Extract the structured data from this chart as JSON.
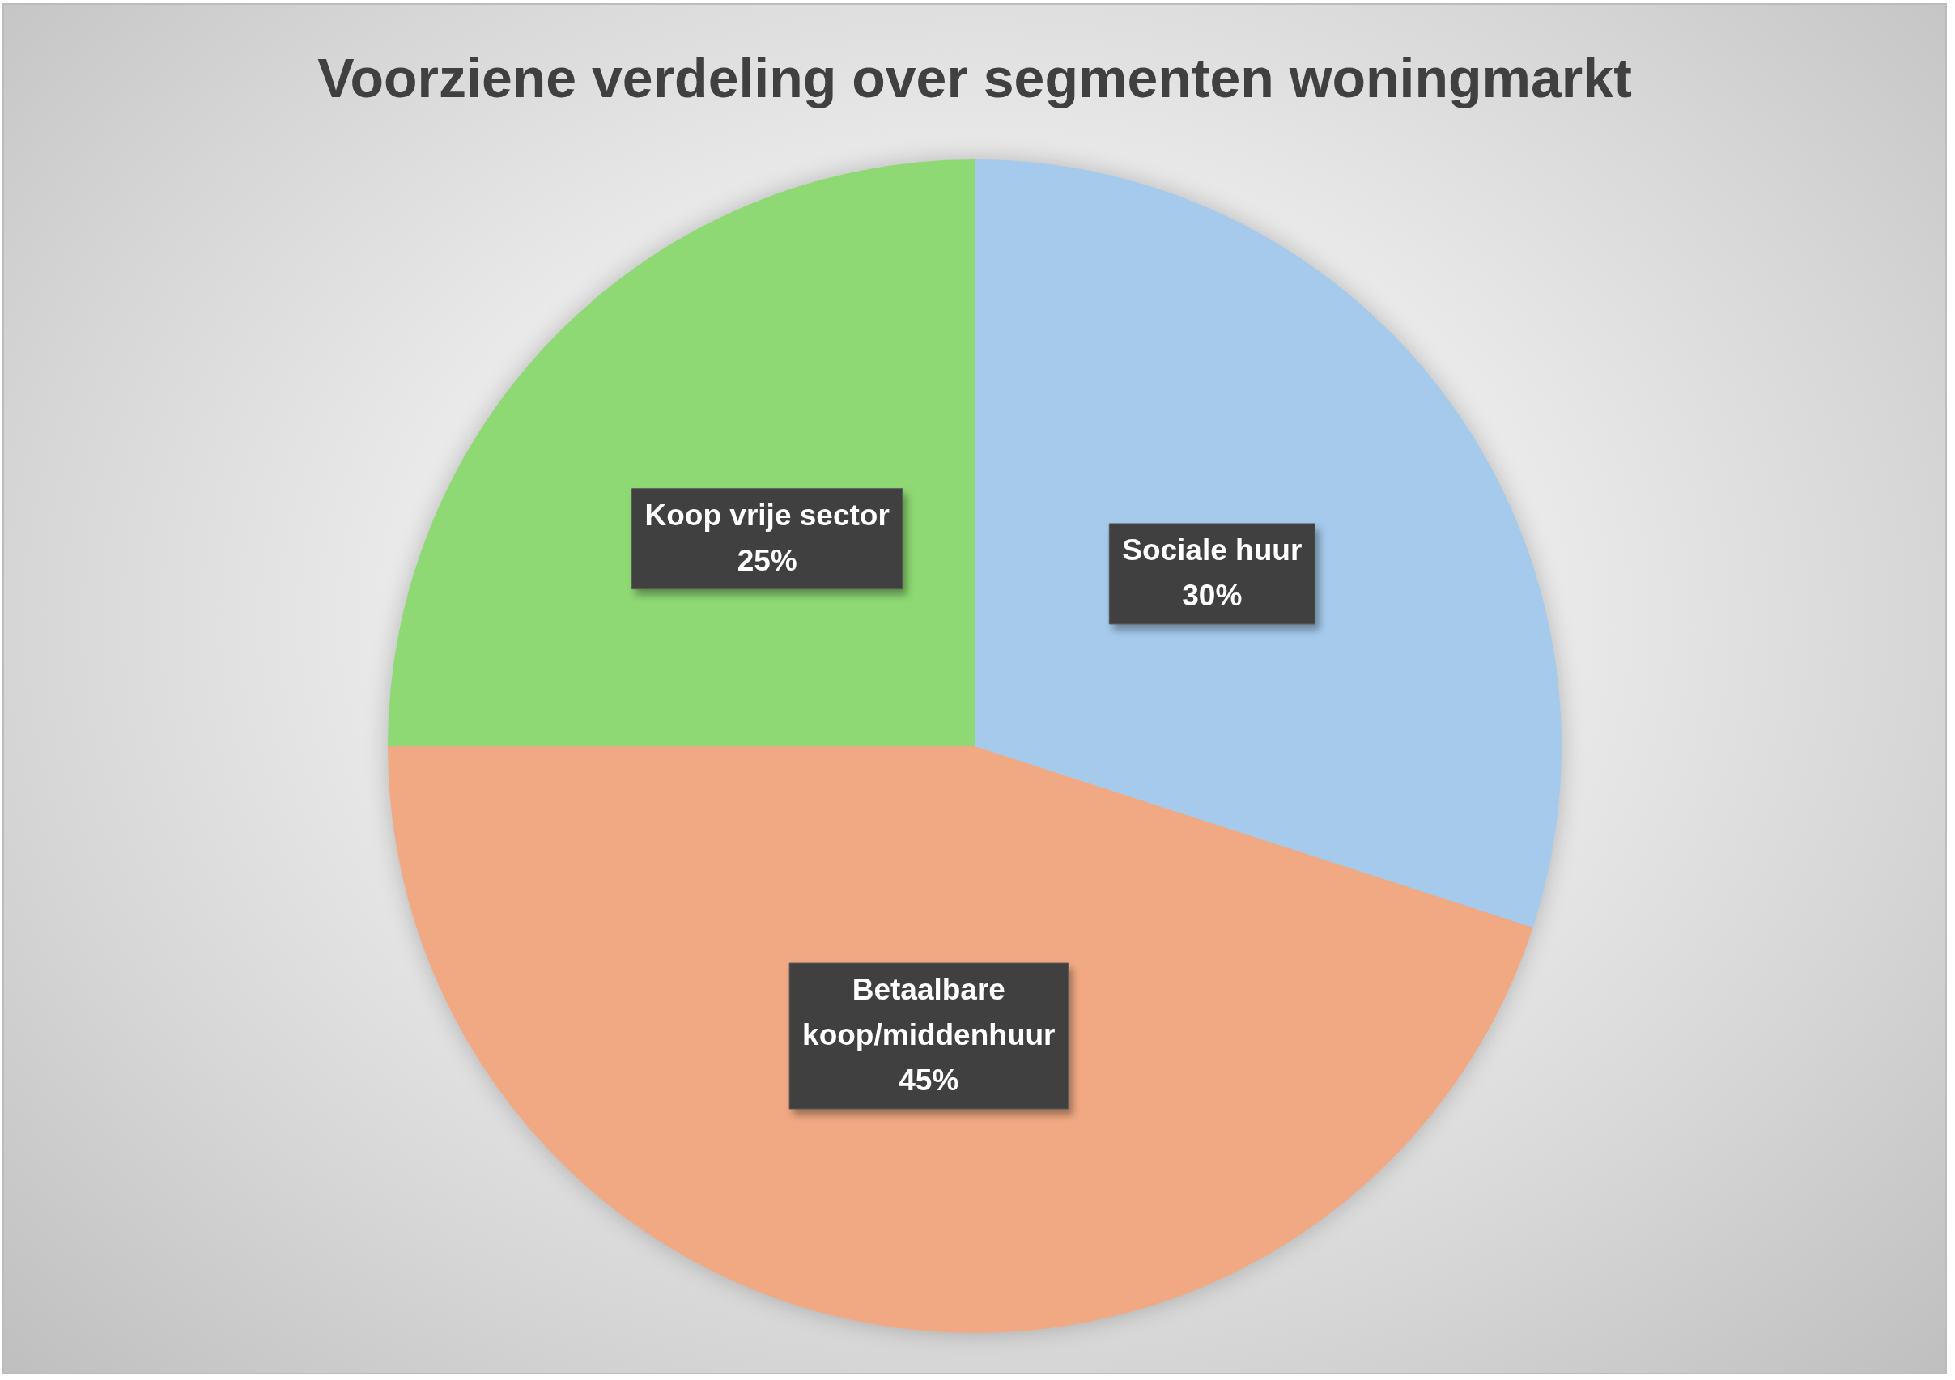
{
  "chart_data": {
    "type": "pie",
    "title": "Voorziene verdeling over segmenten woningmarkt",
    "categories": [
      "Sociale huur",
      "Betaalbare koop/middenhuur",
      "Koop vrije sector"
    ],
    "values": [
      30,
      45,
      25
    ],
    "colors": [
      "#a6caec",
      "#f1a983",
      "#8ed973"
    ],
    "value_labels": [
      "30%",
      "45%",
      "25%"
    ]
  }
}
